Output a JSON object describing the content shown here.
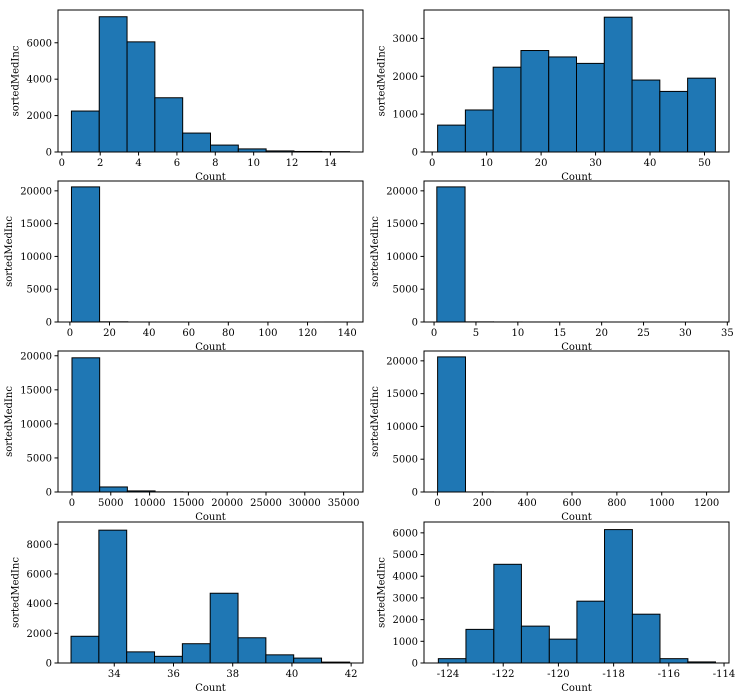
{
  "figure": {
    "background": "#ffffff",
    "bar_color": "#1f77b4",
    "edge_color": "#000000"
  },
  "chart_data": [
    {
      "type": "bar",
      "xlabel": "Count",
      "ylabel": "sortedMedInc",
      "xlim": [
        -0.2,
        15.7
      ],
      "ylim": [
        0,
        7800
      ],
      "xticks": [
        0,
        2,
        4,
        6,
        8,
        10,
        12,
        14
      ],
      "yticks": [
        0,
        2000,
        4000,
        6000
      ],
      "bin_edges": [
        0.5,
        1.95,
        3.4,
        4.85,
        6.3,
        7.75,
        9.2,
        10.65,
        12.1,
        13.55,
        15.0
      ],
      "values": [
        2250,
        7430,
        6050,
        2980,
        1040,
        380,
        170,
        60,
        30,
        20
      ]
    },
    {
      "type": "bar",
      "xlabel": "Count",
      "ylabel": "sortedMedInc",
      "xlim": [
        -1.5,
        54.5
      ],
      "ylim": [
        0,
        3750
      ],
      "xticks": [
        0,
        10,
        20,
        30,
        40,
        50
      ],
      "yticks": [
        0,
        1000,
        2000,
        3000
      ],
      "bin_edges": [
        1,
        6.1,
        11.2,
        16.3,
        21.4,
        26.5,
        31.6,
        36.7,
        41.8,
        46.9,
        52
      ],
      "values": [
        710,
        1110,
        2240,
        2680,
        2510,
        2340,
        3560,
        1900,
        1600,
        1950
      ]
    },
    {
      "type": "bar",
      "xlabel": "Count",
      "ylabel": "sortedMedInc",
      "xlim": [
        -6,
        148
      ],
      "ylim": [
        0,
        21500
      ],
      "xticks": [
        0,
        20,
        40,
        60,
        80,
        100,
        120,
        140
      ],
      "yticks": [
        0,
        5000,
        10000,
        15000,
        20000
      ],
      "bin_edges": [
        0.8,
        15.0,
        29.2,
        43.4,
        57.6,
        71.8,
        86.0,
        100.2,
        114.4,
        128.6,
        142.8
      ],
      "values": [
        20600,
        30,
        5,
        3,
        2,
        1,
        0,
        0,
        0,
        1
      ]
    },
    {
      "type": "bar",
      "xlabel": "Count",
      "ylabel": "sortedMedInc",
      "xlim": [
        -1.2,
        35.2
      ],
      "ylim": [
        0,
        21500
      ],
      "xticks": [
        0,
        5,
        10,
        15,
        20,
        25,
        30,
        35
      ],
      "yticks": [
        0,
        5000,
        10000,
        15000,
        20000
      ],
      "bin_edges": [
        0.33,
        3.7,
        7.1,
        10.5,
        13.8,
        17.2,
        20.6,
        23.9,
        27.3,
        30.7,
        34.1
      ],
      "values": [
        20600,
        20,
        8,
        3,
        2,
        1,
        0,
        0,
        0,
        1
      ]
    },
    {
      "type": "bar",
      "xlabel": "Count",
      "ylabel": "sortedMedInc",
      "xlim": [
        -1800,
        37500
      ],
      "ylim": [
        0,
        20700
      ],
      "xticks": [
        0,
        5000,
        10000,
        15000,
        20000,
        25000,
        30000,
        35000
      ],
      "yticks": [
        0,
        5000,
        10000,
        15000,
        20000
      ],
      "bin_edges": [
        3,
        3571,
        7139,
        10707,
        14275,
        17843,
        21411,
        24979,
        28547,
        32115,
        35682
      ],
      "values": [
        19700,
        740,
        160,
        20,
        10,
        5,
        2,
        1,
        1,
        1
      ]
    },
    {
      "type": "bar",
      "xlabel": "Count",
      "ylabel": "sortedMedInc",
      "xlim": [
        -60,
        1300
      ],
      "ylim": [
        0,
        21500
      ],
      "xticks": [
        0,
        200,
        400,
        600,
        800,
        1000,
        1200
      ],
      "yticks": [
        0,
        5000,
        10000,
        15000,
        20000
      ],
      "bin_edges": [
        0.7,
        125,
        249,
        374,
        498,
        623,
        747,
        872,
        996,
        1121,
        1244
      ],
      "values": [
        20600,
        10,
        5,
        2,
        1,
        1,
        0,
        0,
        0,
        1
      ]
    },
    {
      "type": "bar",
      "xlabel": "Count",
      "ylabel": "sortedMedInc",
      "xlim": [
        32.1,
        42.4
      ],
      "ylim": [
        0,
        9500
      ],
      "xticks": [
        34,
        36,
        38,
        40,
        42
      ],
      "yticks": [
        0,
        2000,
        4000,
        6000,
        8000
      ],
      "bin_edges": [
        32.54,
        33.48,
        34.42,
        35.36,
        36.3,
        37.24,
        38.18,
        39.12,
        40.06,
        41.0,
        41.95
      ],
      "values": [
        1800,
        8950,
        750,
        450,
        1300,
        4700,
        1700,
        550,
        330,
        60
      ]
    },
    {
      "type": "bar",
      "xlabel": "Count",
      "ylabel": "sortedMedInc",
      "xlim": [
        -124.87,
        -113.82
      ],
      "ylim": [
        0,
        6500
      ],
      "xticks": [
        -124,
        -122,
        -120,
        -118,
        -116,
        -114
      ],
      "xtick_labels": [
        "-124",
        "-122",
        "-120",
        "-118",
        "-116",
        "-114"
      ],
      "yticks": [
        0,
        1000,
        2000,
        3000,
        4000,
        5000,
        6000
      ],
      "bin_edges": [
        -124.35,
        -123.35,
        -122.34,
        -121.34,
        -120.33,
        -119.33,
        -118.33,
        -117.32,
        -116.32,
        -115.31,
        -114.31
      ],
      "values": [
        200,
        1550,
        4550,
        1700,
        1100,
        2850,
        6150,
        2250,
        200,
        50
      ]
    }
  ]
}
